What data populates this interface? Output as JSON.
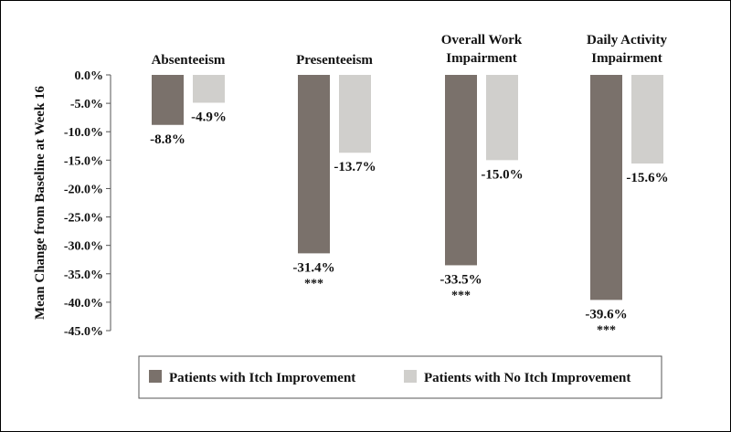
{
  "chart_data": {
    "type": "bar",
    "title": "",
    "xlabel": "",
    "ylabel": "Mean Change from Baseline at Week 16",
    "ylim": [
      -45,
      0
    ],
    "yticks": [
      "0.0%",
      "-5.0%",
      "-10.0%",
      "-15.0%",
      "-20.0%",
      "-25.0%",
      "-30.0%",
      "-35.0%",
      "-40.0%",
      "-45.0%"
    ],
    "ytick_values": [
      0,
      -5,
      -10,
      -15,
      -20,
      -25,
      -30,
      -35,
      -40,
      -45
    ],
    "grid": false,
    "legend_position": "bottom",
    "categories": [
      [
        "Absenteeism"
      ],
      [
        "Presenteeism"
      ],
      [
        "Overall Work",
        "Impairment"
      ],
      [
        "Daily Activity",
        "Impairment"
      ]
    ],
    "series": [
      {
        "name": "Patients with Itch Improvement",
        "color": "#7a716b",
        "values": [
          -8.8,
          -31.4,
          -33.5,
          -39.6
        ],
        "labels": [
          "-8.8%",
          "-31.4%",
          "-33.5%",
          "-39.6%"
        ],
        "significance": [
          "",
          "***",
          "***",
          "***"
        ]
      },
      {
        "name": "Patients with No Itch Improvement",
        "color": "#d0cfcc",
        "values": [
          -4.9,
          -13.7,
          -15.0,
          -15.6
        ],
        "labels": [
          "-4.9%",
          "-13.7%",
          "-15.0%",
          "-15.6%"
        ],
        "significance": [
          "",
          "",
          "",
          ""
        ]
      }
    ]
  }
}
